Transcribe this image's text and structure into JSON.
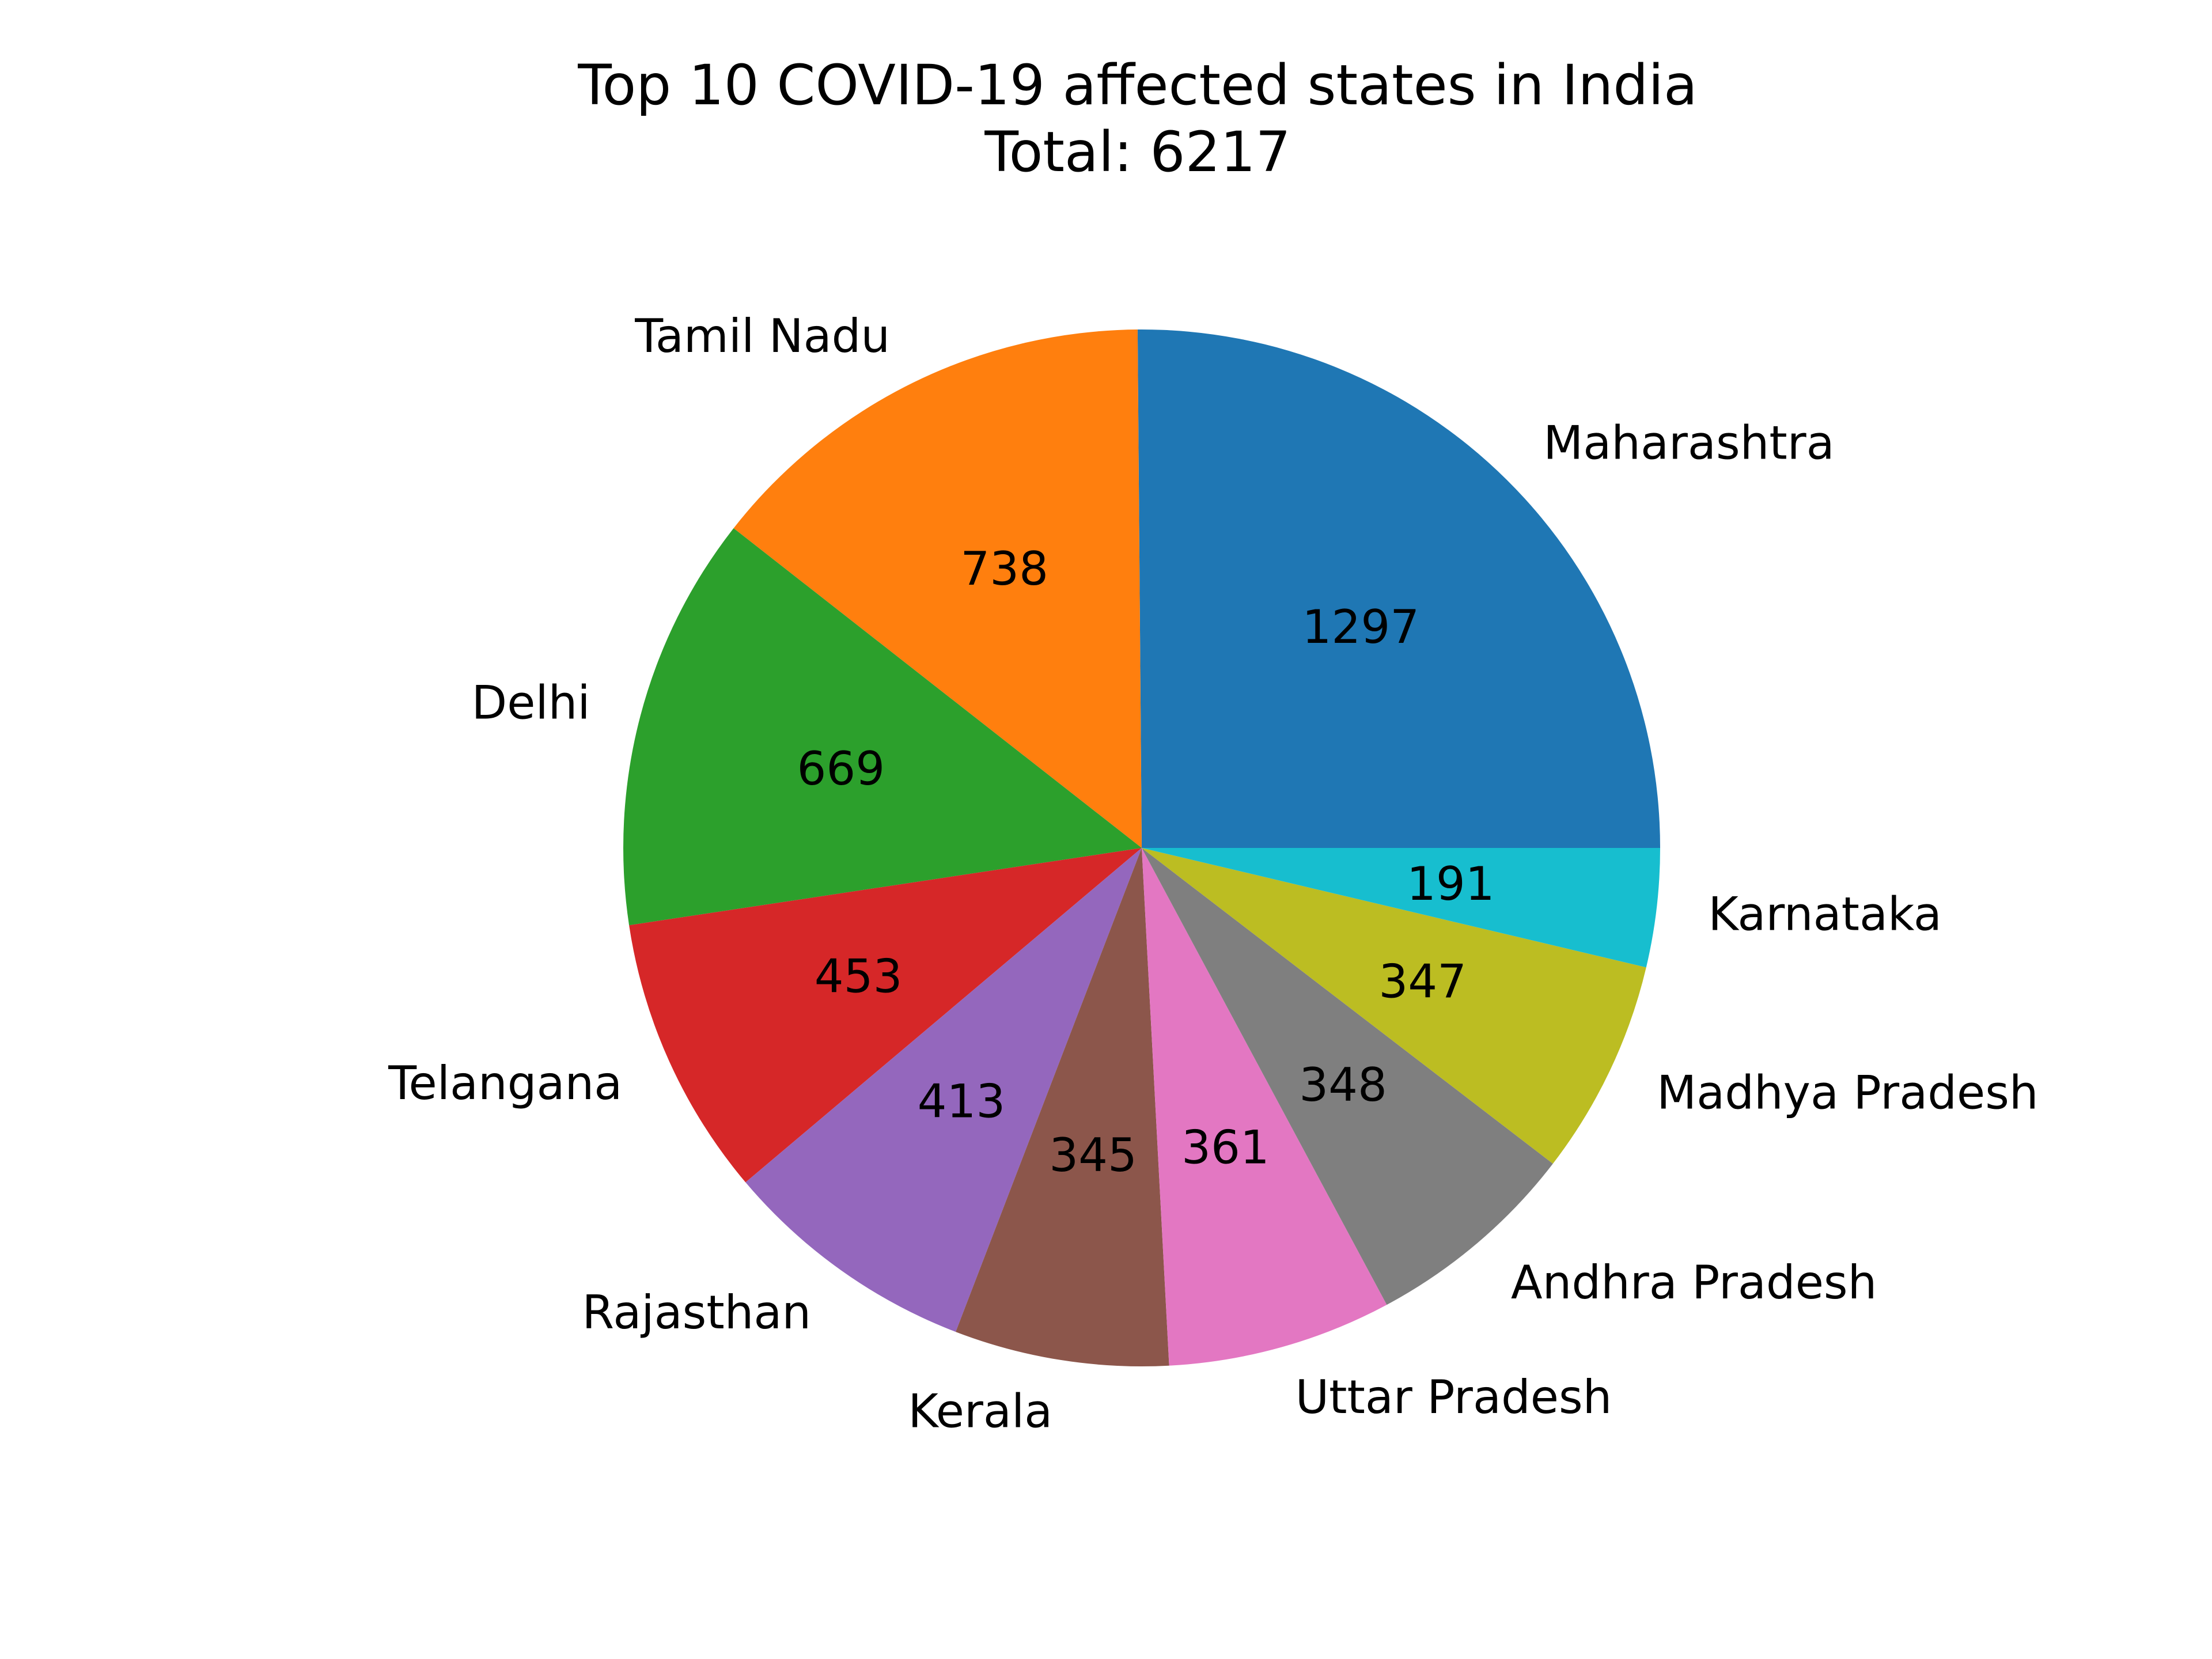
{
  "chart_data": {
    "type": "pie",
    "title": "Top 10 COVID-19 affected states in India",
    "subtitle": "Total: 6217",
    "start_angle_deg": 0,
    "direction": "counterclockwise",
    "slices": [
      {
        "label": "Maharashtra",
        "value": 1297,
        "color": "#1f77b4"
      },
      {
        "label": "Tamil Nadu",
        "value": 738,
        "color": "#ff7f0e"
      },
      {
        "label": "Delhi",
        "value": 669,
        "color": "#2ca02c"
      },
      {
        "label": "Telangana",
        "value": 453,
        "color": "#d62728"
      },
      {
        "label": "Rajasthan",
        "value": 413,
        "color": "#9467bd"
      },
      {
        "label": "Kerala",
        "value": 345,
        "color": "#8c564b"
      },
      {
        "label": "Uttar Pradesh",
        "value": 361,
        "color": "#e377c2"
      },
      {
        "label": "Andhra Pradesh",
        "value": 348,
        "color": "#7f7f7f"
      },
      {
        "label": "Madhya Pradesh",
        "value": 347,
        "color": "#bcbd22"
      },
      {
        "label": "Karnataka",
        "value": 191,
        "color": "#17becf"
      }
    ]
  }
}
